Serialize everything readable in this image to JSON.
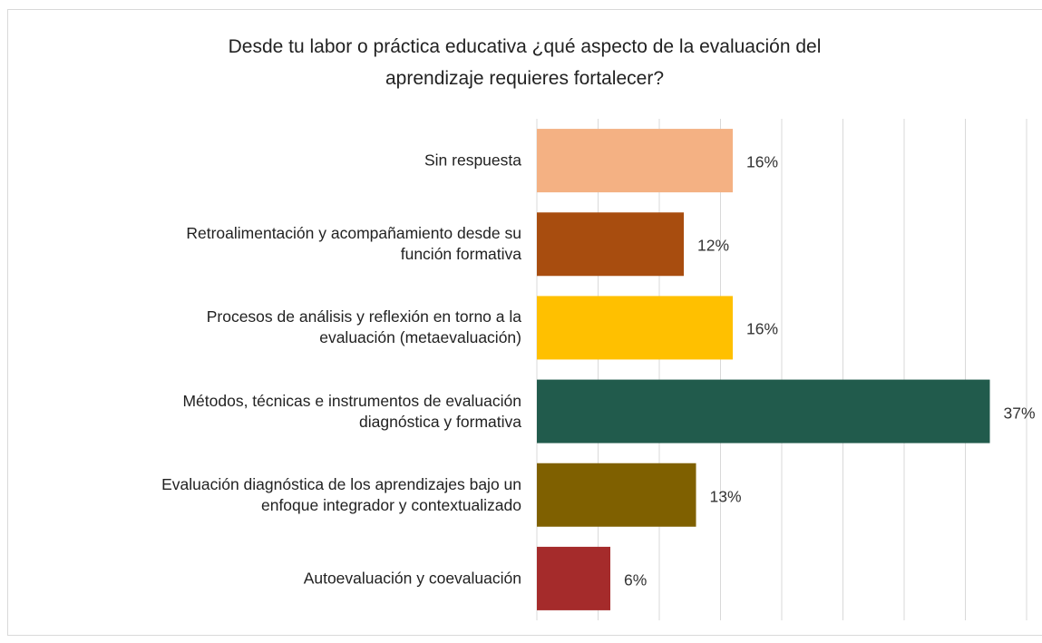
{
  "chart_data": {
    "type": "barh",
    "title": "Desde tu labor o práctica educativa ¿qué aspecto de la evaluación del\naprendizaje requieres fortalecer?",
    "categories": [
      "Sin respuesta",
      "Retroalimentación y acompañamiento desde su\nfunción formativa",
      "Procesos de análisis y reflexión en torno a la\nevaluación (metaevaluación)",
      "Métodos, técnicas e instrumentos de evaluación\ndiagnóstica y formativa",
      "Evaluación diagnóstica de los aprendizajes bajo un\nenfoque integrador y contextualizado",
      "Autoevaluación y coevaluación"
    ],
    "values": [
      16,
      12,
      16,
      37,
      13,
      6
    ],
    "value_labels": [
      "16%",
      "12%",
      "16%",
      "37%",
      "13%",
      "6%"
    ],
    "colors": [
      "#f4b183",
      "#a84d0f",
      "#ffc000",
      "#215b4c",
      "#7f6000",
      "#a52b2b"
    ],
    "xlim": [
      0,
      40
    ],
    "xticks": [
      0,
      5,
      10,
      15,
      20,
      25,
      30,
      35,
      40
    ],
    "grid": true
  }
}
